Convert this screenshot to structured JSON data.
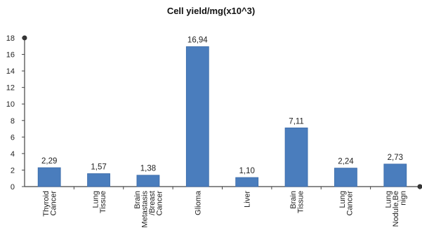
{
  "chart_data": {
    "type": "bar",
    "title": "Cell yield/mg(x10^3)",
    "xlabel": "",
    "ylabel": "",
    "ylim": [
      0,
      18
    ],
    "yticks": [
      0,
      2,
      4,
      6,
      8,
      10,
      12,
      14,
      16,
      18
    ],
    "grid": false,
    "legend": "none",
    "bar_color": "#4a7dbd",
    "categories": [
      "Thyroid Cancer",
      "Lung Tissue",
      "Brain Metastasis /Breast Cancer",
      "Glioma",
      "Liver",
      "Brain Tissue",
      "Lung Cancer",
      "Lung Nodule,Benign"
    ],
    "category_label_lines": [
      [
        "Thyroid",
        "Cancer"
      ],
      [
        "Lung",
        "Tissue"
      ],
      [
        "Brain",
        "Metastasis",
        "/Breast",
        "Cancer"
      ],
      [
        "Glioma"
      ],
      [
        "Liver"
      ],
      [
        "Brain",
        "Tissue"
      ],
      [
        "Lung",
        "Cancer"
      ],
      [
        "Lung",
        "Nodule,Be",
        "nign"
      ]
    ],
    "values": [
      2.29,
      1.57,
      1.38,
      16.94,
      1.1,
      7.11,
      2.24,
      2.73
    ],
    "data_labels": [
      "2,29",
      "1,57",
      "1,38",
      "16,94",
      "1,10",
      "7,11",
      "2,24",
      "2,73"
    ]
  }
}
